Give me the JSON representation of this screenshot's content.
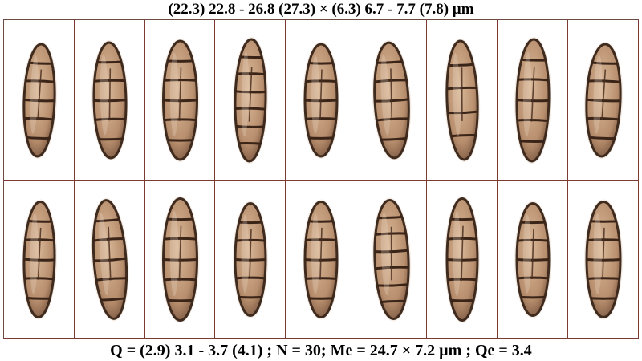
{
  "caption_top": "(22.3) 22.8 - 26.8 (27.3) × (6.3) 6.7 - 7.7 (7.8) µm",
  "caption_bottom": "Q = (2.9) 3.1 - 3.7 (4.1) ; N = 30; Me = 24.7 × 7.2 µm ; Qe = 3.4",
  "grid": {
    "rows": 2,
    "columns": 9
  },
  "spores": [
    {
      "row": 0,
      "col": 0,
      "septa": 5,
      "tilt": 2
    },
    {
      "row": 0,
      "col": 1,
      "septa": 5,
      "tilt": -1
    },
    {
      "row": 0,
      "col": 2,
      "septa": 5,
      "tilt": 0
    },
    {
      "row": 0,
      "col": 3,
      "septa": 6,
      "tilt": 1
    },
    {
      "row": 0,
      "col": 4,
      "septa": 5,
      "tilt": 0
    },
    {
      "row": 0,
      "col": 5,
      "septa": 5,
      "tilt": -3
    },
    {
      "row": 0,
      "col": 6,
      "septa": 4,
      "tilt": -2
    },
    {
      "row": 0,
      "col": 7,
      "septa": 5,
      "tilt": 1
    },
    {
      "row": 0,
      "col": 8,
      "septa": 5,
      "tilt": 2
    },
    {
      "row": 1,
      "col": 0,
      "septa": 5,
      "tilt": 1
    },
    {
      "row": 1,
      "col": 1,
      "septa": 5,
      "tilt": -4
    },
    {
      "row": 1,
      "col": 2,
      "septa": 5,
      "tilt": 0
    },
    {
      "row": 1,
      "col": 3,
      "septa": 5,
      "tilt": 0
    },
    {
      "row": 1,
      "col": 4,
      "septa": 5,
      "tilt": 0
    },
    {
      "row": 1,
      "col": 5,
      "septa": 6,
      "tilt": -2
    },
    {
      "row": 1,
      "col": 6,
      "septa": 5,
      "tilt": 0
    },
    {
      "row": 1,
      "col": 7,
      "septa": 5,
      "tilt": 0
    },
    {
      "row": 1,
      "col": 8,
      "septa": 5,
      "tilt": 0
    }
  ]
}
